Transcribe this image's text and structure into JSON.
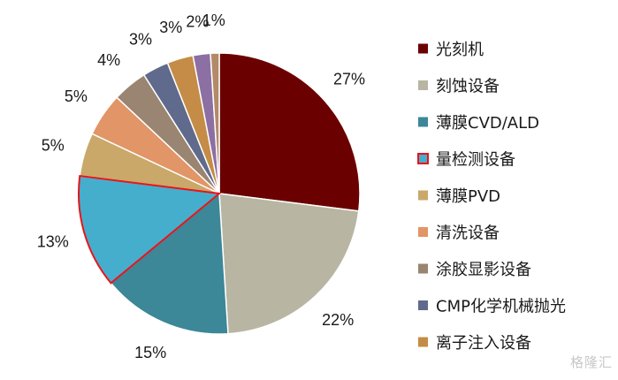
{
  "chart_data": {
    "type": "pie",
    "title": "",
    "legend_position": "right",
    "slices": [
      {
        "label": "光刻机",
        "value": 27,
        "display": "27%",
        "color": "#6b0000"
      },
      {
        "label": "刻蚀设备",
        "value": 22,
        "display": "22%",
        "color": "#b8b6a2"
      },
      {
        "label": "薄膜CVD/ALD",
        "value": 15,
        "display": "15%",
        "color": "#3c8798"
      },
      {
        "label": "量检测设备",
        "value": 13,
        "display": "13%",
        "color": "#45aecd",
        "highlight": "#e8141b"
      },
      {
        "label": "薄膜PVD",
        "value": 5,
        "display": "5%",
        "color": "#c9a86a"
      },
      {
        "label": "清洗设备",
        "value": 5,
        "display": "5%",
        "color": "#e29566"
      },
      {
        "label": "涂胶显影设备",
        "value": 4,
        "display": "4%",
        "color": "#9a8472"
      },
      {
        "label": "CMP化学机械抛光",
        "value": 3,
        "display": "3%",
        "color": "#5f6a8c"
      },
      {
        "label": "离子注入设备",
        "value": 3,
        "display": "3%",
        "color": "#c48c46"
      },
      {
        "label": "",
        "value": 2,
        "display": "2%",
        "color": "#8c6fa3"
      },
      {
        "label": "",
        "value": 1,
        "display": "1%",
        "color": "#b38968"
      }
    ]
  },
  "watermark": "格隆汇"
}
